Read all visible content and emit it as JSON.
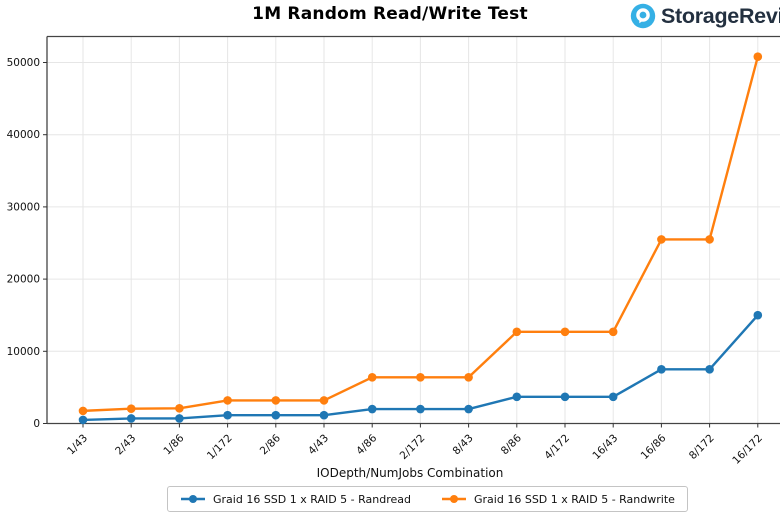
{
  "brand": {
    "name": "StorageReview",
    "icon_color": "#35b0e5",
    "text_color": "#233040"
  },
  "chart_data": {
    "type": "line",
    "title": "1M Random Read/Write Test",
    "xlabel": "IODepth/NumJobs Combination",
    "ylabel": "",
    "categories": [
      "1/43",
      "2/43",
      "1/86",
      "1/172",
      "2/86",
      "4/43",
      "4/86",
      "2/172",
      "8/43",
      "8/86",
      "4/172",
      "16/43",
      "16/86",
      "8/172",
      "16/172"
    ],
    "series": [
      {
        "name": "Graid 16 SSD 1 x RAID 5 - Randread",
        "color": "#1f77b4",
        "values": [
          500,
          700,
          700,
          1150,
          1150,
          1150,
          2000,
          2000,
          2000,
          3700,
          3700,
          3700,
          7500,
          7500,
          15000
        ]
      },
      {
        "name": "Graid 16 SSD 1 x RAID 5 - Randwrite",
        "color": "#ff7f0e",
        "values": [
          1750,
          2050,
          2100,
          3200,
          3200,
          3200,
          6400,
          6400,
          6400,
          12700,
          12700,
          12700,
          25500,
          25500,
          50800
        ]
      }
    ],
    "ylim": [
      0,
      53500
    ],
    "yticks": [
      0,
      10000,
      20000,
      30000,
      40000,
      50000
    ],
    "grid": true,
    "legend_position": "bottom",
    "x_tick_rotation": 45
  }
}
